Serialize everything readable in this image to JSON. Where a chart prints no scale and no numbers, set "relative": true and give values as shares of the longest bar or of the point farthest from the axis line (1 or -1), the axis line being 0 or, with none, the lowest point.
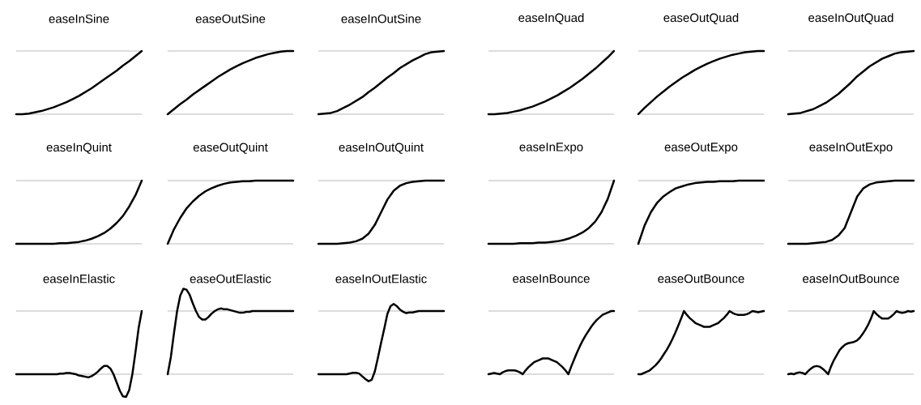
{
  "chart_data": [
    {
      "type": "line",
      "title": "easeInSine",
      "relative": true,
      "color": "#000000",
      "categories": [
        null,
        null,
        null,
        null,
        null,
        null,
        null,
        null,
        null,
        null,
        null,
        null,
        null,
        null,
        null,
        null,
        null,
        null,
        null,
        null,
        null
      ],
      "values": [
        0,
        0,
        0.01,
        0.03,
        0.05,
        0.08,
        0.11,
        0.15,
        0.19,
        0.24,
        0.29,
        0.35,
        0.41,
        0.48,
        0.55,
        0.62,
        0.69,
        0.77,
        0.84,
        0.92,
        1
      ],
      "ref_lines": [
        {
          "axis": "y",
          "value": 0,
          "color": "#bbbbbb"
        },
        {
          "axis": "y",
          "value": 1,
          "color": "#bbbbbb"
        }
      ]
    },
    {
      "type": "line",
      "title": "easeOutSine",
      "relative": true,
      "color": "#000000",
      "categories": [
        null,
        null,
        null,
        null,
        null,
        null,
        null,
        null,
        null,
        null,
        null,
        null,
        null,
        null,
        null,
        null,
        null,
        null,
        null,
        null,
        null
      ],
      "values": [
        0,
        0.08,
        0.16,
        0.23,
        0.31,
        0.38,
        0.45,
        0.52,
        0.59,
        0.65,
        0.71,
        0.76,
        0.81,
        0.85,
        0.89,
        0.92,
        0.95,
        0.97,
        0.99,
        1,
        1
      ],
      "ref_lines": [
        {
          "axis": "y",
          "value": 0,
          "color": "#bbbbbb"
        },
        {
          "axis": "y",
          "value": 1,
          "color": "#bbbbbb"
        }
      ]
    },
    {
      "type": "line",
      "title": "easeInOutSine",
      "relative": true,
      "color": "#000000",
      "categories": [
        null,
        null,
        null,
        null,
        null,
        null,
        null,
        null,
        null,
        null,
        null,
        null,
        null,
        null,
        null,
        null,
        null,
        null,
        null,
        null,
        null
      ],
      "values": [
        0,
        0.01,
        0.02,
        0.05,
        0.1,
        0.15,
        0.21,
        0.27,
        0.35,
        0.42,
        0.5,
        0.58,
        0.65,
        0.73,
        0.79,
        0.85,
        0.9,
        0.95,
        0.98,
        0.99,
        1
      ],
      "ref_lines": [
        {
          "axis": "y",
          "value": 0,
          "color": "#bbbbbb"
        },
        {
          "axis": "y",
          "value": 1,
          "color": "#bbbbbb"
        }
      ]
    },
    {
      "type": "line",
      "title": "easeInQuad",
      "relative": true,
      "color": "#000000",
      "categories": [
        null,
        null,
        null,
        null,
        null,
        null,
        null,
        null,
        null,
        null,
        null,
        null,
        null,
        null,
        null,
        null,
        null,
        null,
        null,
        null,
        null
      ],
      "values": [
        0,
        0,
        0.01,
        0.02,
        0.04,
        0.06,
        0.09,
        0.12,
        0.16,
        0.2,
        0.25,
        0.3,
        0.36,
        0.42,
        0.49,
        0.56,
        0.64,
        0.72,
        0.81,
        0.9,
        1
      ],
      "ref_lines": [
        {
          "axis": "y",
          "value": 0,
          "color": "#bbbbbb"
        },
        {
          "axis": "y",
          "value": 1,
          "color": "#bbbbbb"
        }
      ]
    },
    {
      "type": "line",
      "title": "easeOutQuad",
      "relative": true,
      "color": "#000000",
      "categories": [
        null,
        null,
        null,
        null,
        null,
        null,
        null,
        null,
        null,
        null,
        null,
        null,
        null,
        null,
        null,
        null,
        null,
        null,
        null,
        null,
        null
      ],
      "values": [
        0,
        0.1,
        0.19,
        0.28,
        0.36,
        0.44,
        0.51,
        0.58,
        0.64,
        0.7,
        0.75,
        0.8,
        0.84,
        0.88,
        0.91,
        0.94,
        0.96,
        0.98,
        0.99,
        1,
        1
      ],
      "ref_lines": [
        {
          "axis": "y",
          "value": 0,
          "color": "#bbbbbb"
        },
        {
          "axis": "y",
          "value": 1,
          "color": "#bbbbbb"
        }
      ]
    },
    {
      "type": "line",
      "title": "easeInOutQuad",
      "relative": true,
      "color": "#000000",
      "categories": [
        null,
        null,
        null,
        null,
        null,
        null,
        null,
        null,
        null,
        null,
        null,
        null,
        null,
        null,
        null,
        null,
        null,
        null,
        null,
        null,
        null
      ],
      "values": [
        0,
        0.01,
        0.02,
        0.05,
        0.08,
        0.13,
        0.18,
        0.25,
        0.32,
        0.41,
        0.5,
        0.6,
        0.68,
        0.76,
        0.82,
        0.88,
        0.92,
        0.96,
        0.98,
        0.99,
        1
      ],
      "ref_lines": [
        {
          "axis": "y",
          "value": 0,
          "color": "#bbbbbb"
        },
        {
          "axis": "y",
          "value": 1,
          "color": "#bbbbbb"
        }
      ]
    },
    {
      "type": "line",
      "title": "easeInQuint",
      "relative": true,
      "color": "#000000",
      "categories": [
        null,
        null,
        null,
        null,
        null,
        null,
        null,
        null,
        null,
        null,
        null,
        null,
        null,
        null,
        null,
        null,
        null,
        null,
        null,
        null,
        null
      ],
      "values": [
        0,
        0,
        0,
        0,
        0,
        0,
        0,
        0.01,
        0.01,
        0.02,
        0.03,
        0.05,
        0.08,
        0.12,
        0.17,
        0.24,
        0.33,
        0.44,
        0.59,
        0.77,
        1
      ],
      "ref_lines": [
        {
          "axis": "y",
          "value": 0,
          "color": "#bbbbbb"
        },
        {
          "axis": "y",
          "value": 1,
          "color": "#bbbbbb"
        }
      ]
    },
    {
      "type": "line",
      "title": "easeOutQuint",
      "relative": true,
      "color": "#000000",
      "categories": [
        null,
        null,
        null,
        null,
        null,
        null,
        null,
        null,
        null,
        null,
        null,
        null,
        null,
        null,
        null,
        null,
        null,
        null,
        null,
        null,
        null
      ],
      "values": [
        0,
        0.23,
        0.41,
        0.56,
        0.67,
        0.76,
        0.83,
        0.88,
        0.92,
        0.95,
        0.97,
        0.98,
        0.99,
        0.99,
        1,
        1,
        1,
        1,
        1,
        1,
        1
      ],
      "ref_lines": [
        {
          "axis": "y",
          "value": 0,
          "color": "#bbbbbb"
        },
        {
          "axis": "y",
          "value": 1,
          "color": "#bbbbbb"
        }
      ]
    },
    {
      "type": "line",
      "title": "easeInOutQuint",
      "relative": true,
      "color": "#000000",
      "categories": [
        null,
        null,
        null,
        null,
        null,
        null,
        null,
        null,
        null,
        null,
        null,
        null,
        null,
        null,
        null,
        null,
        null,
        null,
        null,
        null,
        null
      ],
      "values": [
        0,
        0,
        0,
        0,
        0.01,
        0.02,
        0.04,
        0.08,
        0.16,
        0.3,
        0.5,
        0.7,
        0.84,
        0.92,
        0.96,
        0.98,
        0.99,
        1,
        1,
        1,
        1
      ],
      "ref_lines": [
        {
          "axis": "y",
          "value": 0,
          "color": "#bbbbbb"
        },
        {
          "axis": "y",
          "value": 1,
          "color": "#bbbbbb"
        }
      ]
    },
    {
      "type": "line",
      "title": "easeInExpo",
      "relative": true,
      "color": "#000000",
      "categories": [
        null,
        null,
        null,
        null,
        null,
        null,
        null,
        null,
        null,
        null,
        null,
        null,
        null,
        null,
        null,
        null,
        null,
        null,
        null,
        null,
        null
      ],
      "values": [
        0,
        0,
        0,
        0,
        0,
        0.01,
        0.01,
        0.01,
        0.02,
        0.02,
        0.03,
        0.04,
        0.06,
        0.09,
        0.13,
        0.18,
        0.25,
        0.35,
        0.5,
        0.71,
        1
      ],
      "ref_lines": [
        {
          "axis": "y",
          "value": 0,
          "color": "#bbbbbb"
        },
        {
          "axis": "y",
          "value": 1,
          "color": "#bbbbbb"
        }
      ]
    },
    {
      "type": "line",
      "title": "easeOutExpo",
      "relative": true,
      "color": "#000000",
      "categories": [
        null,
        null,
        null,
        null,
        null,
        null,
        null,
        null,
        null,
        null,
        null,
        null,
        null,
        null,
        null,
        null,
        null,
        null,
        null,
        null,
        null
      ],
      "values": [
        0,
        0.29,
        0.5,
        0.65,
        0.75,
        0.82,
        0.88,
        0.91,
        0.94,
        0.96,
        0.97,
        0.98,
        0.98,
        0.99,
        0.99,
        0.99,
        1,
        1,
        1,
        1,
        1
      ],
      "ref_lines": [
        {
          "axis": "y",
          "value": 0,
          "color": "#bbbbbb"
        },
        {
          "axis": "y",
          "value": 1,
          "color": "#bbbbbb"
        }
      ]
    },
    {
      "type": "line",
      "title": "easeInOutExpo",
      "relative": true,
      "color": "#000000",
      "categories": [
        null,
        null,
        null,
        null,
        null,
        null,
        null,
        null,
        null,
        null,
        null,
        null,
        null,
        null,
        null,
        null,
        null,
        null,
        null,
        null,
        null
      ],
      "values": [
        0,
        0,
        0,
        0,
        0.01,
        0.02,
        0.03,
        0.06,
        0.13,
        0.25,
        0.5,
        0.75,
        0.88,
        0.94,
        0.97,
        0.98,
        0.99,
        1,
        1,
        1,
        1
      ],
      "ref_lines": [
        {
          "axis": "y",
          "value": 0,
          "color": "#bbbbbb"
        },
        {
          "axis": "y",
          "value": 1,
          "color": "#bbbbbb"
        }
      ]
    },
    {
      "type": "line",
      "title": "easeInElastic",
      "relative": true,
      "color": "#000000",
      "categories": [
        null,
        null,
        null,
        null,
        null,
        null,
        null,
        null,
        null,
        null,
        null,
        null,
        null,
        null,
        null,
        null,
        null,
        null,
        null,
        null,
        null,
        null,
        null,
        null,
        null,
        null,
        null,
        null,
        null,
        null,
        null,
        null,
        null,
        null,
        null,
        null,
        null,
        null,
        null,
        null,
        null
      ],
      "values": [
        0,
        0,
        0,
        0,
        0,
        0,
        0,
        0,
        0,
        0,
        0,
        0,
        0,
        0,
        0.01,
        0.01,
        0.02,
        0.02,
        0.01,
        0,
        -0.02,
        -0.03,
        -0.04,
        -0.05,
        -0.03,
        0,
        0.04,
        0.09,
        0.13,
        0.13,
        0.09,
        0,
        -0.13,
        -0.26,
        -0.35,
        -0.36,
        -0.25,
        0,
        0.35,
        0.73,
        1
      ],
      "ref_lines": [
        {
          "axis": "y",
          "value": 0,
          "color": "#bbbbbb"
        },
        {
          "axis": "y",
          "value": 1,
          "color": "#bbbbbb"
        }
      ]
    },
    {
      "type": "line",
      "title": "easeOutElastic",
      "relative": true,
      "color": "#000000",
      "categories": [
        null,
        null,
        null,
        null,
        null,
        null,
        null,
        null,
        null,
        null,
        null,
        null,
        null,
        null,
        null,
        null,
        null,
        null,
        null,
        null,
        null,
        null,
        null,
        null,
        null,
        null,
        null,
        null,
        null,
        null,
        null,
        null,
        null,
        null,
        null,
        null,
        null,
        null,
        null,
        null,
        null
      ],
      "values": [
        0,
        0.2,
        0.48,
        0.74,
        0.92,
        1,
        0.99,
        0.93,
        0.83,
        0.74,
        0.67,
        0.64,
        0.64,
        0.67,
        0.71,
        0.74,
        0.76,
        0.77,
        0.76,
        0.76,
        0.75,
        0.74,
        0.73,
        0.72,
        0.72,
        0.73,
        0.73,
        0.74,
        0.74,
        0.74,
        0.74,
        0.74,
        0.74,
        0.74,
        0.74,
        0.74,
        0.74,
        0.74,
        0.74,
        0.74,
        0.74
      ],
      "ref_lines": [
        {
          "axis": "y",
          "value": 0,
          "color": "#bbbbbb"
        },
        {
          "axis": "y",
          "value": 0.74,
          "color": "#bbbbbb"
        }
      ]
    },
    {
      "type": "line",
      "title": "easeInOutElastic",
      "relative": true,
      "color": "#000000",
      "categories": [
        null,
        null,
        null,
        null,
        null,
        null,
        null,
        null,
        null,
        null,
        null,
        null,
        null,
        null,
        null,
        null,
        null,
        null,
        null,
        null,
        null,
        null,
        null,
        null,
        null,
        null,
        null,
        null,
        null,
        null,
        null,
        null,
        null,
        null,
        null,
        null,
        null,
        null,
        null,
        null,
        null
      ],
      "values": [
        0,
        0,
        0,
        0,
        0,
        0,
        0,
        0,
        0,
        0,
        0.01,
        0.02,
        0.02,
        0.01,
        -0.03,
        -0.07,
        -0.1,
        -0.08,
        0.04,
        0.24,
        0.45,
        0.65,
        0.86,
        0.97,
        1,
        0.97,
        0.92,
        0.89,
        0.87,
        0.88,
        0.88,
        0.89,
        0.9,
        0.9,
        0.9,
        0.9,
        0.9,
        0.9,
        0.9,
        0.9,
        0.9
      ],
      "ref_lines": [
        {
          "axis": "y",
          "value": 0,
          "color": "#bbbbbb"
        },
        {
          "axis": "y",
          "value": 0.9,
          "color": "#bbbbbb"
        }
      ]
    },
    {
      "type": "line",
      "title": "easeInBounce",
      "relative": true,
      "color": "#000000",
      "categories": [
        null,
        null,
        null,
        null,
        null,
        null,
        null,
        null,
        null,
        null,
        null,
        null,
        null,
        null,
        null,
        null,
        null,
        null,
        null,
        null,
        null,
        null,
        null,
        null,
        null,
        null,
        null,
        null,
        null,
        null,
        null,
        null,
        null,
        null,
        null,
        null,
        null,
        null,
        null,
        null,
        null,
        null,
        null,
        null,
        null
      ],
      "values": [
        0,
        0.01,
        0.02,
        0.01,
        0,
        0.03,
        0.05,
        0.06,
        0.06,
        0.06,
        0.05,
        0.03,
        0,
        0.06,
        0.11,
        0.15,
        0.19,
        0.21,
        0.23,
        0.25,
        0.25,
        0.25,
        0.23,
        0.21,
        0.19,
        0.15,
        0.11,
        0.06,
        0,
        0.12,
        0.23,
        0.34,
        0.44,
        0.53,
        0.61,
        0.68,
        0.75,
        0.81,
        0.86,
        0.9,
        0.94,
        0.96,
        0.98,
        1,
        1
      ],
      "ref_lines": [
        {
          "axis": "y",
          "value": 0,
          "color": "#bbbbbb"
        },
        {
          "axis": "y",
          "value": 1,
          "color": "#bbbbbb"
        }
      ]
    },
    {
      "type": "line",
      "title": "easeOutBounce",
      "relative": true,
      "color": "#000000",
      "categories": [
        null,
        null,
        null,
        null,
        null,
        null,
        null,
        null,
        null,
        null,
        null,
        null,
        null,
        null,
        null,
        null,
        null,
        null,
        null,
        null,
        null,
        null,
        null,
        null,
        null,
        null,
        null,
        null,
        null,
        null,
        null,
        null,
        null,
        null,
        null,
        null,
        null,
        null,
        null,
        null,
        null,
        null,
        null,
        null,
        null
      ],
      "values": [
        0,
        0,
        0.02,
        0.04,
        0.06,
        0.1,
        0.14,
        0.19,
        0.25,
        0.32,
        0.39,
        0.47,
        0.56,
        0.66,
        0.77,
        0.88,
        1,
        0.94,
        0.89,
        0.85,
        0.81,
        0.79,
        0.77,
        0.75,
        0.75,
        0.75,
        0.77,
        0.79,
        0.81,
        0.85,
        0.89,
        0.94,
        1,
        0.97,
        0.95,
        0.94,
        0.94,
        0.94,
        0.95,
        0.97,
        1,
        0.99,
        0.98,
        0.99,
        1
      ],
      "ref_lines": [
        {
          "axis": "y",
          "value": 0,
          "color": "#bbbbbb"
        },
        {
          "axis": "y",
          "value": 1,
          "color": "#bbbbbb"
        }
      ]
    },
    {
      "type": "line",
      "title": "easeInOutBounce",
      "relative": true,
      "color": "#000000",
      "categories": [
        null,
        null,
        null,
        null,
        null,
        null,
        null,
        null,
        null,
        null,
        null,
        null,
        null,
        null,
        null,
        null,
        null,
        null,
        null,
        null,
        null,
        null,
        null,
        null,
        null,
        null,
        null,
        null,
        null,
        null,
        null,
        null,
        null,
        null,
        null,
        null,
        null,
        null,
        null,
        null,
        null,
        null,
        null,
        null,
        null
      ],
      "values": [
        0,
        0.01,
        0,
        0.02,
        0.03,
        0.02,
        0,
        0.05,
        0.09,
        0.12,
        0.13,
        0.12,
        0.09,
        0.05,
        0,
        0.12,
        0.22,
        0.3,
        0.38,
        0.43,
        0.47,
        0.49,
        0.5,
        0.51,
        0.53,
        0.57,
        0.63,
        0.7,
        0.78,
        0.88,
        1,
        0.95,
        0.91,
        0.88,
        0.88,
        0.88,
        0.91,
        0.95,
        1,
        0.98,
        0.97,
        0.98,
        1,
        0.99,
        1
      ],
      "ref_lines": [
        {
          "axis": "y",
          "value": 0,
          "color": "#bbbbbb"
        },
        {
          "axis": "y",
          "value": 1,
          "color": "#bbbbbb"
        }
      ]
    }
  ]
}
